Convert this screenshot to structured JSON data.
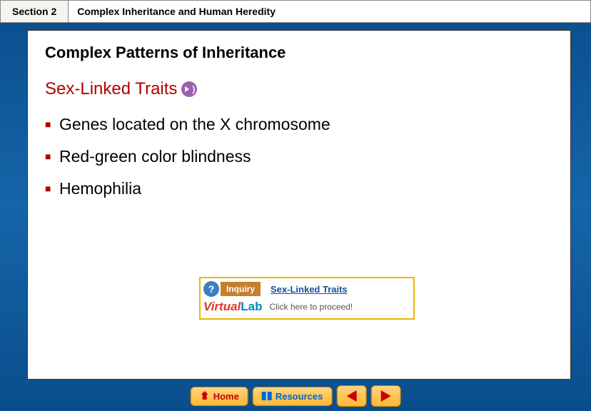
{
  "header": {
    "section_label": "Section 2",
    "chapter_title": "Complex Inheritance and Human Heredity"
  },
  "content": {
    "subtitle": "Complex Patterns of Inheritance",
    "topic_title": "Sex-Linked Traits",
    "bullets": [
      "Genes located on the X chromosome",
      "Red-green color blindness",
      "Hemophilia"
    ]
  },
  "virtual_lab": {
    "inquiry_label": "Inquiry",
    "link_text": "Sex-Linked Traits",
    "brand_virtual": "Virtual",
    "brand_lab": "Lab",
    "proceed_text": "Click here to proceed!"
  },
  "nav": {
    "home_label": "Home",
    "resources_label": "Resources"
  },
  "colors": {
    "frame_gradient_top": "#0a4d8c",
    "frame_gradient_mid": "#1565a8",
    "section_bg": "#f5f5f0",
    "topic_color": "#b30000",
    "bullet_color": "#b30000",
    "vl_border": "#e6b800",
    "nav_btn_bg_top": "#ffd480",
    "nav_btn_bg_bottom": "#ffb833",
    "home_color": "#cc0000",
    "resources_color": "#0066cc",
    "link_color": "#1a4d99"
  }
}
